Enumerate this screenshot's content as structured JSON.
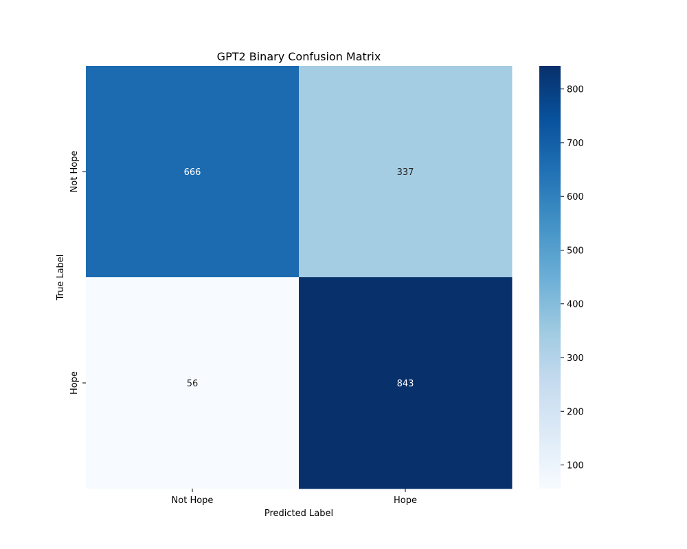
{
  "chart_data": {
    "type": "heatmap",
    "title": "GPT2 Binary Confusion Matrix",
    "xlabel": "Predicted Label",
    "ylabel": "True Label",
    "x_categories": [
      "Not Hope",
      "Hope"
    ],
    "y_categories": [
      "Not Hope",
      "Hope"
    ],
    "values": [
      [
        666,
        337
      ],
      [
        56,
        843
      ]
    ],
    "colormap": "Blues",
    "colorbar": {
      "min": 56,
      "max": 843,
      "ticks": [
        100,
        200,
        300,
        400,
        500,
        600,
        700,
        800
      ]
    },
    "grid": false,
    "legend": "colorbar-right"
  }
}
